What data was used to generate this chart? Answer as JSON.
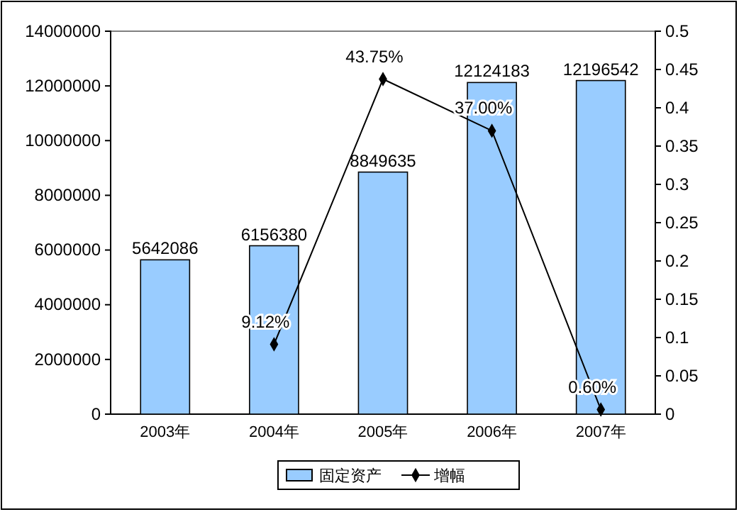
{
  "chart_data": {
    "type": "bar",
    "categories": [
      "2003年",
      "2004年",
      "2005年",
      "2006年",
      "2007年"
    ],
    "series": [
      {
        "name": "固定资产",
        "color": "#99ccff",
        "values": [
          5642086,
          6156380,
          8849635,
          12124183,
          12196542
        ],
        "value_labels": [
          "5642086",
          "6156380",
          "8849635",
          "12124183",
          "12196542"
        ]
      },
      {
        "name": "增幅",
        "type": "line",
        "axis": "y2",
        "color": "#000000",
        "values": [
          null,
          0.0912,
          0.4375,
          0.37,
          0.006
        ],
        "value_labels": [
          null,
          "9.12%",
          "43.75%",
          "37.00%",
          "0.60%"
        ]
      }
    ],
    "ylim": [
      0,
      14000000
    ],
    "yticks": [
      0,
      2000000,
      4000000,
      6000000,
      8000000,
      10000000,
      12000000,
      14000000
    ],
    "y2lim": [
      0,
      0.5
    ],
    "y2ticks": [
      0,
      0.05,
      0.1,
      0.15,
      0.2,
      0.25,
      0.3,
      0.35,
      0.4,
      0.45,
      0.5
    ],
    "grid": false,
    "legend": "bottom",
    "marker": "diamond",
    "line_style": "solid"
  }
}
